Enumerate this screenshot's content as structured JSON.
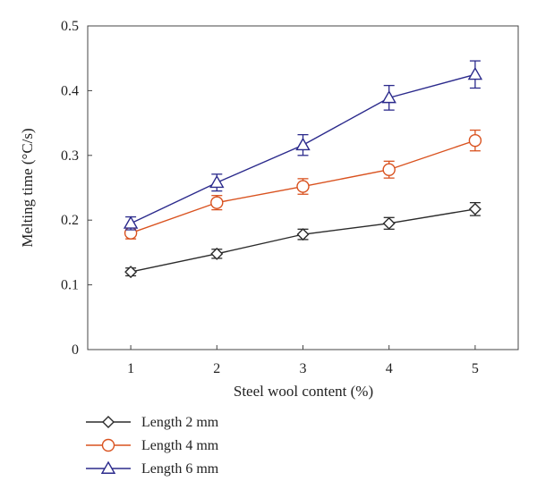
{
  "chart_data": {
    "type": "line",
    "xlabel": "Steel wool content (%)",
    "ylabel": "Melting time (°C/s)",
    "xlim": [
      0.5,
      5.5
    ],
    "ylim": [
      0,
      0.5
    ],
    "x": [
      1,
      2,
      3,
      4,
      5
    ],
    "x_ticks": [
      "1",
      "2",
      "3",
      "4",
      "5"
    ],
    "y_ticks": [
      "0",
      "0.1",
      "0.2",
      "0.3",
      "0.4",
      "0.5"
    ],
    "y_tick_values": [
      0,
      0.1,
      0.2,
      0.3,
      0.4,
      0.5
    ],
    "grid": false,
    "legend_position": "bottom-left, below plot",
    "series": [
      {
        "name": "Length 2 mm",
        "marker": "diamond",
        "color": "#2b2b2b",
        "values": [
          0.12,
          0.148,
          0.178,
          0.195,
          0.217
        ],
        "errors": [
          0.006,
          0.007,
          0.008,
          0.009,
          0.01
        ]
      },
      {
        "name": "Length 4 mm",
        "marker": "circle",
        "color": "#d9521f",
        "values": [
          0.18,
          0.227,
          0.252,
          0.278,
          0.323
        ],
        "errors": [
          0.009,
          0.011,
          0.012,
          0.013,
          0.016
        ]
      },
      {
        "name": "Length 6 mm",
        "marker": "triangle",
        "color": "#2b2a8c",
        "values": [
          0.195,
          0.258,
          0.316,
          0.389,
          0.425
        ],
        "errors": [
          0.01,
          0.013,
          0.016,
          0.019,
          0.021
        ]
      }
    ]
  }
}
